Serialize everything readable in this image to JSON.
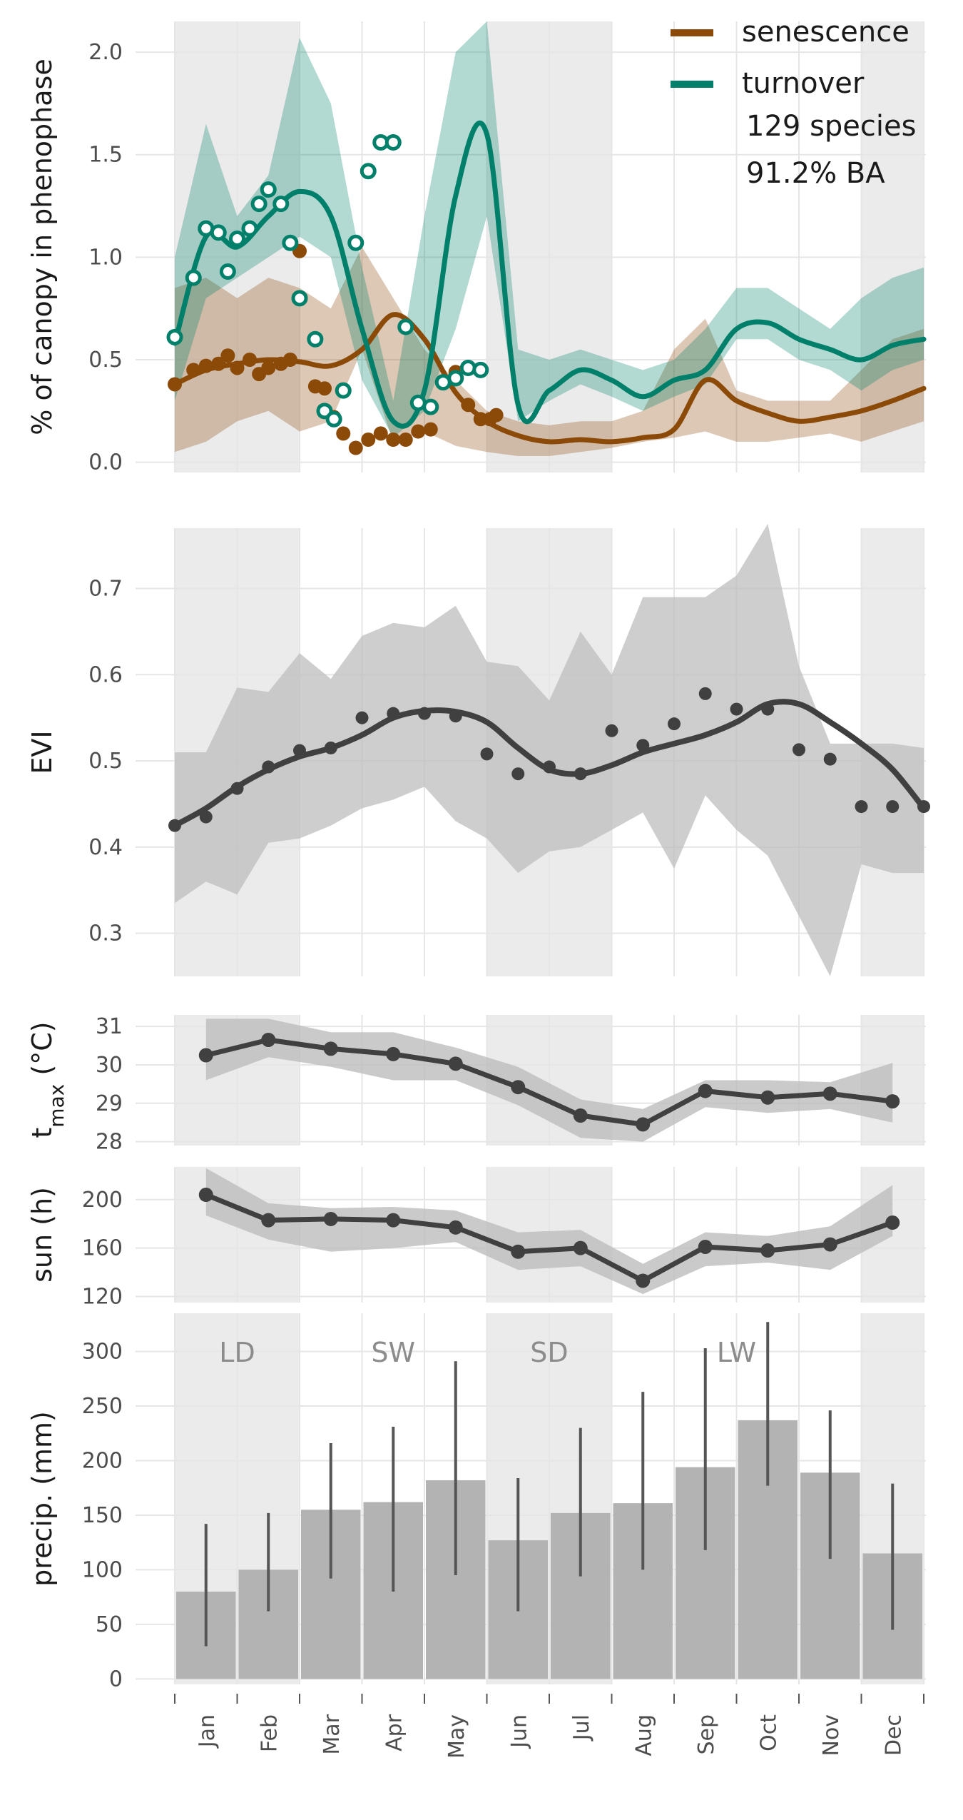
{
  "colors": {
    "senescence": "#8B4A08",
    "turnover": "#00806A",
    "dark": "#404040",
    "band": "#BDBDBD",
    "bar": "#B3B3B3",
    "dry_shade": "#EBEBEB",
    "grid": "#E6E6E6"
  },
  "months": [
    "Jan",
    "Feb",
    "Mar",
    "Apr",
    "May",
    "Jun",
    "Jul",
    "Aug",
    "Sep",
    "Oct",
    "Nov",
    "Dec"
  ],
  "dry_seasons": [
    [
      0,
      2
    ],
    [
      5,
      7
    ],
    [
      11,
      12
    ]
  ],
  "season_labels": [
    {
      "text": "LD",
      "x": 1.0
    },
    {
      "text": "SW",
      "x": 3.5
    },
    {
      "text": "SD",
      "x": 6.0
    },
    {
      "text": "LW",
      "x": 9.0
    }
  ],
  "legend": {
    "senescence": "senescence",
    "turnover": "turnover",
    "species": "129 species",
    "ba": "91.2% BA"
  },
  "chart_data": [
    {
      "id": "phenophase",
      "type": "line",
      "ylabel": "% of canopy in phenophase",
      "ylim": [
        -0.05,
        2.15
      ],
      "yticks": [
        0.0,
        0.5,
        1.0,
        1.5,
        2.0
      ],
      "ytick_labels": [
        "0.0",
        "0.5",
        "1.0",
        "1.5",
        "2.0"
      ],
      "series": [
        {
          "name": "senescence",
          "x": [
            0.0,
            0.5,
            1.0,
            1.5,
            2.0,
            2.5,
            3.0,
            3.5,
            4.0,
            4.5,
            5.0,
            5.5,
            6.0,
            6.5,
            7.0,
            7.5,
            8.0,
            8.5,
            9.0,
            9.5,
            10.0,
            10.5,
            11.0,
            11.5,
            12.0
          ],
          "fit": [
            0.38,
            0.45,
            0.48,
            0.5,
            0.49,
            0.47,
            0.55,
            0.72,
            0.6,
            0.34,
            0.2,
            0.13,
            0.1,
            0.11,
            0.1,
            0.12,
            0.16,
            0.4,
            0.3,
            0.24,
            0.2,
            0.22,
            0.25,
            0.3,
            0.36
          ],
          "lower": [
            0.05,
            0.1,
            0.2,
            0.25,
            0.15,
            0.2,
            0.55,
            0.1,
            0.15,
            0.08,
            0.05,
            0.03,
            0.03,
            0.05,
            0.07,
            0.1,
            0.12,
            0.15,
            0.1,
            0.1,
            0.12,
            0.14,
            0.1,
            0.15,
            0.2
          ],
          "upper": [
            0.85,
            0.9,
            0.8,
            0.9,
            0.85,
            0.75,
            1.05,
            0.8,
            0.55,
            0.4,
            0.25,
            0.2,
            0.18,
            0.2,
            0.2,
            0.25,
            0.55,
            0.7,
            0.35,
            0.3,
            0.3,
            0.3,
            0.45,
            0.6,
            0.65
          ],
          "points_x": [
            0.0,
            0.3,
            0.5,
            0.7,
            0.85,
            1.0,
            1.2,
            1.35,
            1.5,
            1.7,
            1.85,
            2.0,
            2.25,
            2.4,
            2.55,
            2.7,
            2.9,
            3.1,
            3.3,
            3.5,
            3.7,
            3.9,
            4.1,
            4.3,
            4.5,
            4.7,
            4.9,
            5.05,
            5.15
          ],
          "points_y": [
            0.38,
            0.45,
            0.47,
            0.48,
            0.52,
            0.46,
            0.5,
            0.43,
            0.46,
            0.48,
            0.5,
            1.03,
            0.37,
            0.36,
            0.22,
            0.14,
            0.07,
            0.11,
            0.14,
            0.11,
            0.11,
            0.15,
            0.16,
            0.39,
            0.44,
            0.28,
            0.21,
            0.21,
            0.23
          ]
        },
        {
          "name": "turnover",
          "x": [
            0.0,
            0.5,
            1.0,
            1.5,
            2.0,
            2.5,
            3.0,
            3.5,
            4.0,
            4.5,
            5.0,
            5.5,
            6.0,
            6.5,
            7.0,
            7.5,
            8.0,
            8.5,
            9.0,
            9.5,
            10.0,
            10.5,
            11.0,
            11.5,
            12.0
          ],
          "fit": [
            0.58,
            1.1,
            1.05,
            1.2,
            1.32,
            1.2,
            0.65,
            0.2,
            0.35,
            1.3,
            1.6,
            0.28,
            0.35,
            0.45,
            0.4,
            0.32,
            0.4,
            0.45,
            0.65,
            0.68,
            0.6,
            0.55,
            0.5,
            0.57,
            0.6
          ],
          "lower": [
            0.3,
            0.8,
            0.9,
            1.0,
            1.1,
            1.0,
            0.4,
            0.12,
            0.25,
            0.65,
            1.2,
            0.2,
            0.3,
            0.38,
            0.32,
            0.25,
            0.32,
            0.38,
            0.6,
            0.6,
            0.5,
            0.45,
            0.35,
            0.45,
            0.5
          ],
          "upper": [
            1.0,
            1.65,
            1.2,
            1.4,
            2.07,
            1.75,
            0.95,
            0.3,
            1.2,
            2.0,
            2.15,
            0.55,
            0.5,
            0.55,
            0.5,
            0.45,
            0.5,
            0.65,
            0.85,
            0.85,
            0.75,
            0.65,
            0.8,
            0.9,
            0.95
          ],
          "points_x": [
            0.0,
            0.3,
            0.5,
            0.7,
            0.85,
            1.0,
            1.2,
            1.35,
            1.5,
            1.7,
            1.85,
            2.0,
            2.25,
            2.4,
            2.55,
            2.7,
            2.9,
            3.1,
            3.3,
            3.5,
            3.7,
            3.9,
            4.1,
            4.3,
            4.5,
            4.7,
            4.9
          ],
          "points_y": [
            0.61,
            0.9,
            1.14,
            1.12,
            0.93,
            1.09,
            1.14,
            1.26,
            1.33,
            1.26,
            1.07,
            0.8,
            0.6,
            0.25,
            0.21,
            0.35,
            1.07,
            1.42,
            1.56,
            1.56,
            0.66,
            0.29,
            0.27,
            0.39,
            0.41,
            0.46,
            0.45
          ]
        }
      ]
    },
    {
      "id": "evi",
      "type": "line",
      "ylabel": "EVI",
      "ylim": [
        0.25,
        0.77
      ],
      "yticks": [
        0.3,
        0.4,
        0.5,
        0.6,
        0.7
      ],
      "ytick_labels": [
        "0.3",
        "0.4",
        "0.5",
        "0.6",
        "0.7"
      ],
      "series": [
        {
          "name": "",
          "x": [
            0.0,
            0.5,
            1.0,
            1.5,
            2.0,
            2.5,
            3.0,
            3.5,
            4.0,
            4.5,
            5.0,
            5.5,
            6.0,
            6.5,
            7.0,
            7.5,
            8.0,
            8.5,
            9.0,
            9.5,
            10.0,
            10.5,
            11.0,
            11.5,
            12.0
          ],
          "fit": [
            0.425,
            0.445,
            0.47,
            0.49,
            0.505,
            0.515,
            0.53,
            0.55,
            0.558,
            0.557,
            0.545,
            0.515,
            0.49,
            0.485,
            0.495,
            0.51,
            0.52,
            0.53,
            0.545,
            0.566,
            0.566,
            0.545,
            0.52,
            0.49,
            0.445
          ],
          "lower": [
            0.335,
            0.36,
            0.345,
            0.405,
            0.41,
            0.425,
            0.445,
            0.455,
            0.47,
            0.43,
            0.41,
            0.37,
            0.395,
            0.4,
            0.42,
            0.44,
            0.375,
            0.46,
            0.42,
            0.39,
            0.32,
            0.25,
            0.38,
            0.37,
            0.37
          ],
          "upper": [
            0.51,
            0.51,
            0.585,
            0.58,
            0.625,
            0.595,
            0.645,
            0.66,
            0.655,
            0.68,
            0.615,
            0.61,
            0.57,
            0.65,
            0.6,
            0.69,
            0.69,
            0.69,
            0.715,
            0.775,
            0.61,
            0.52,
            0.52,
            0.52,
            0.515
          ],
          "points_x": [
            0.0,
            0.5,
            1.0,
            1.5,
            2.0,
            2.5,
            3.0,
            3.5,
            4.0,
            4.5,
            5.0,
            5.5,
            6.0,
            6.5,
            7.0,
            7.5,
            8.0,
            8.5,
            9.0,
            9.5,
            10.0,
            10.5,
            11.0,
            11.5,
            12.0
          ],
          "points_y": [
            0.425,
            0.435,
            0.468,
            0.493,
            0.512,
            0.515,
            0.55,
            0.555,
            0.555,
            0.552,
            0.508,
            0.485,
            0.493,
            0.485,
            0.535,
            0.518,
            0.543,
            0.578,
            0.56,
            0.56,
            0.513,
            0.502,
            0.447,
            0.447,
            0.447
          ]
        }
      ]
    },
    {
      "id": "tmax",
      "type": "line",
      "ylabel": "t_max (°C)",
      "ylabel_main": "t",
      "ylabel_sub": "max",
      "ylabel_unit": " (°C)",
      "ylim": [
        27.9,
        31.3
      ],
      "yticks": [
        28,
        29,
        30,
        31
      ],
      "ytick_labels": [
        "28",
        "29",
        "30",
        "31"
      ],
      "series": [
        {
          "name": "",
          "x": [
            0.5,
            1.5,
            2.5,
            3.5,
            4.5,
            5.5,
            6.5,
            7.5,
            8.5,
            9.5,
            10.5,
            11.5
          ],
          "values": [
            30.25,
            30.65,
            30.42,
            30.28,
            30.03,
            29.42,
            28.68,
            28.45,
            29.32,
            29.15,
            29.25,
            29.05
          ],
          "lower": [
            29.6,
            30.2,
            29.95,
            29.6,
            29.6,
            28.95,
            28.1,
            28.0,
            28.9,
            28.75,
            28.85,
            28.5
          ],
          "upper": [
            31.2,
            31.2,
            30.85,
            30.85,
            30.45,
            29.95,
            29.1,
            28.85,
            29.6,
            29.6,
            29.55,
            30.05
          ]
        }
      ]
    },
    {
      "id": "sun",
      "type": "line",
      "ylabel": "sun (h)",
      "ylim": [
        115,
        227
      ],
      "yticks": [
        120,
        160,
        200
      ],
      "ytick_labels": [
        "120",
        "160",
        "200"
      ],
      "series": [
        {
          "name": "",
          "x": [
            0.5,
            1.5,
            2.5,
            3.5,
            4.5,
            5.5,
            6.5,
            7.5,
            8.5,
            9.5,
            10.5,
            11.5
          ],
          "values": [
            204,
            183,
            184,
            183,
            177,
            157,
            160,
            133,
            161,
            158,
            163,
            181
          ],
          "lower": [
            187,
            167,
            157,
            160,
            165,
            142,
            145,
            122,
            145,
            148,
            142,
            170
          ],
          "upper": [
            226,
            197,
            193,
            194,
            191,
            173,
            175,
            147,
            173,
            170,
            178,
            212
          ]
        }
      ]
    },
    {
      "id": "precip",
      "type": "bar",
      "ylabel": "precip. (mm)",
      "ylim": [
        -5,
        335
      ],
      "yticks": [
        0,
        50,
        100,
        150,
        200,
        250,
        300
      ],
      "ytick_labels": [
        "0",
        "50",
        "100",
        "150",
        "200",
        "250",
        "300"
      ],
      "categories": [
        "Jan",
        "Feb",
        "Mar",
        "Apr",
        "May",
        "Jun",
        "Jul",
        "Aug",
        "Sep",
        "Oct",
        "Nov",
        "Dec"
      ],
      "values": [
        80,
        100,
        155,
        162,
        182,
        127,
        152,
        161,
        194,
        237,
        189,
        115
      ],
      "err_low": [
        30,
        62,
        92,
        80,
        95,
        62,
        94,
        100,
        118,
        177,
        110,
        45
      ],
      "err_high": [
        142,
        152,
        216,
        231,
        291,
        184,
        230,
        263,
        303,
        327,
        246,
        179
      ]
    }
  ]
}
